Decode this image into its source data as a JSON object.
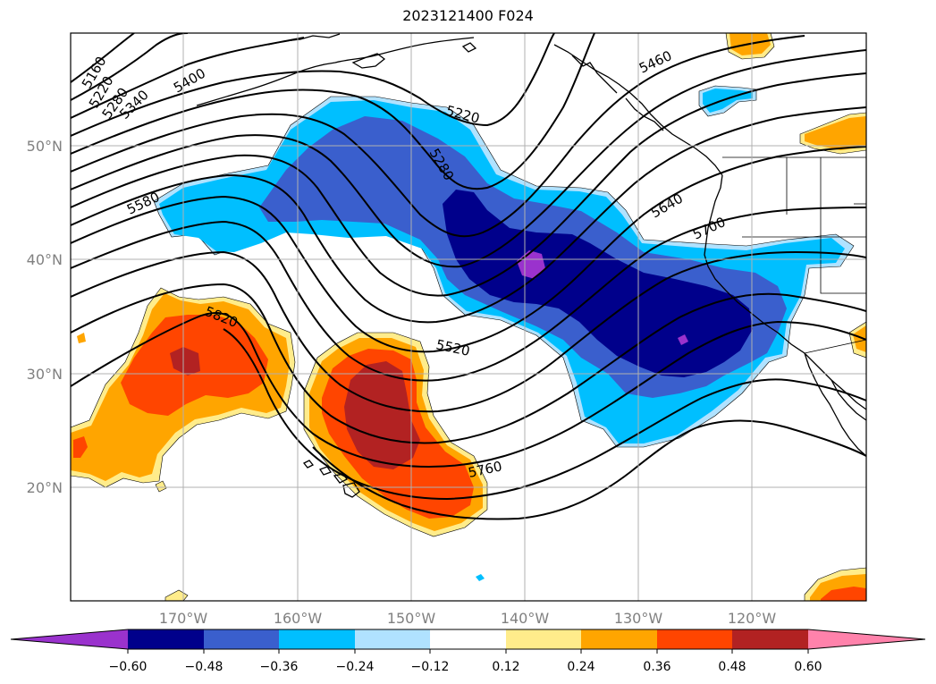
{
  "title": "2023121400 F024",
  "map": {
    "lat_labels": [
      "50°N",
      "40°N",
      "30°N",
      "20°N"
    ],
    "lon_labels": [
      "170°W",
      "160°W",
      "150°W",
      "140°W",
      "130°W",
      "120°W"
    ],
    "gridlines": true,
    "contour_labels": [
      "5160",
      "5220",
      "5280",
      "5340",
      "5400",
      "5220",
      "5280",
      "5460",
      "5580",
      "5640",
      "5700",
      "5820",
      "5520",
      "5760"
    ]
  },
  "colorbar": {
    "ticks": [
      "−0.60",
      "−0.48",
      "−0.36",
      "−0.24",
      "−0.12",
      "0.12",
      "0.24",
      "0.36",
      "0.48",
      "0.60"
    ],
    "colors": [
      "#9a32cd",
      "#00008b",
      "#3a5fcd",
      "#00bfff",
      "#b0e2ff",
      "#ffffff",
      "#ffec8b",
      "#ffa500",
      "#ff4500",
      "#b22222",
      "#ff82ab"
    ]
  },
  "colors": {
    "neg_extreme": "#9a32cd",
    "neg_strong": "#00008b",
    "neg_med": "#3a5fcd",
    "neg_light": "#00bfff",
    "neg_pale": "#b0e2ff",
    "pos_pale": "#ffec8b",
    "pos_light": "#ffa500",
    "pos_med": "#ff4500",
    "pos_strong": "#b22222",
    "pos_extreme": "#ff82ab",
    "gridline": "#b0b0b0"
  }
}
